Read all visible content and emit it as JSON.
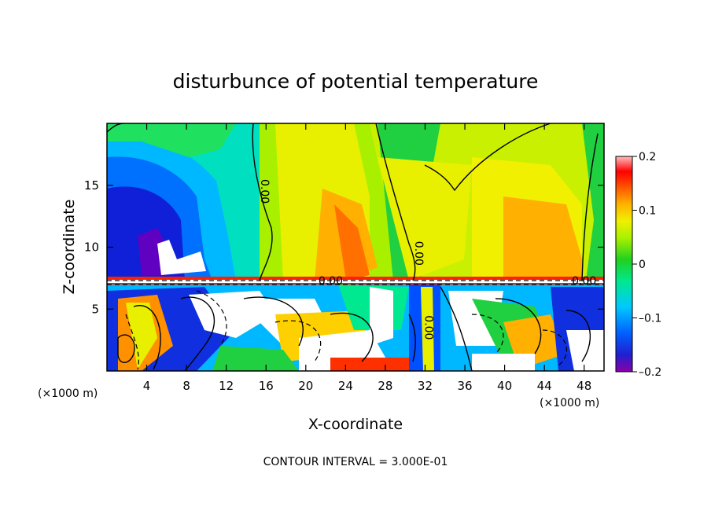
{
  "chart_data": {
    "type": "heatmap",
    "title": "disturbunce of potential temperature",
    "xlabel": "X-coordinate",
    "ylabel": "Z-coordinate",
    "x_unit": "(×1000 m)",
    "xlim": [
      0,
      50
    ],
    "ylim": [
      0,
      20
    ],
    "x_ticks": [
      "4",
      "8",
      "12",
      "16",
      "20",
      "24",
      "28",
      "32",
      "36",
      "40",
      "44",
      "48"
    ],
    "x_tick_values": [
      4,
      8,
      12,
      16,
      20,
      24,
      28,
      32,
      36,
      40,
      44,
      48
    ],
    "y_ticks": [
      "5",
      "10",
      "15"
    ],
    "y_tick_values": [
      5,
      10,
      15
    ],
    "colorbar": {
      "range": [
        -0.2,
        0.2
      ],
      "tick_labels": [
        "0.2",
        "0.1",
        "0",
        "–0.1",
        "–0.2"
      ],
      "tick_values": [
        0.2,
        0.1,
        0,
        -0.1,
        -0.2
      ],
      "colors": [
        "#8b00a8",
        "#4b00c8",
        "#1010d8",
        "#0050ff",
        "#0090ff",
        "#00c8ff",
        "#00e8e0",
        "#00e890",
        "#10d010",
        "#60e000",
        "#a8f000",
        "#e8f000",
        "#ffd000",
        "#ffa000",
        "#ff6000",
        "#ff2000",
        "#ff0000",
        "#ff5060",
        "#ff9090",
        "#ffc0c0"
      ]
    },
    "contour_labels": [
      {
        "text": "0.00",
        "x": 15.5,
        "z": 14.5
      },
      {
        "text": "0.00",
        "x": 22.5,
        "z": 7.0
      },
      {
        "text": "0.00",
        "x": 31.0,
        "z": 9.5
      },
      {
        "text": "0.00",
        "x": 48.0,
        "z": 7.0
      },
      {
        "text": "0.00",
        "x": 32.0,
        "z": 3.5
      }
    ],
    "contour_interval": "CONTOUR INTERVAL = 3.000E-01"
  }
}
